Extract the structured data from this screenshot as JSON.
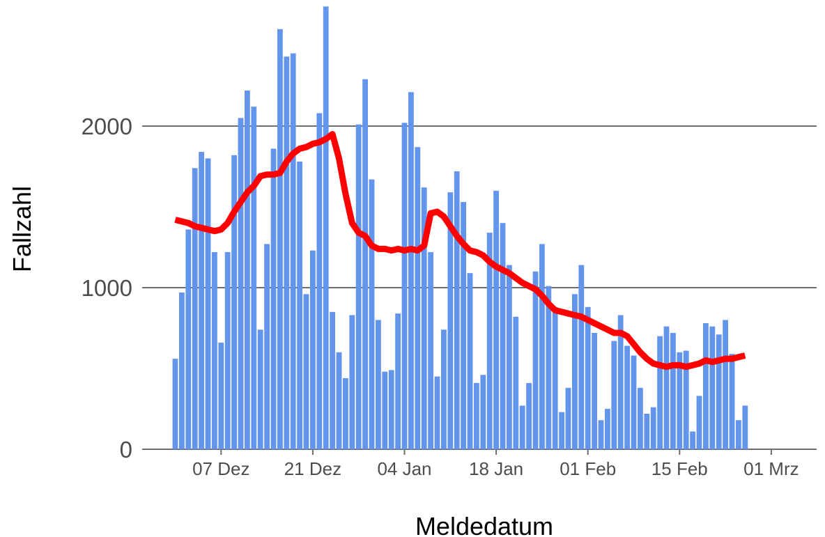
{
  "chart_data": {
    "type": "bar",
    "xlabel": "Meldedatum",
    "ylabel": "Fallzahl",
    "ylim": [
      0,
      2850
    ],
    "y_ticks": [
      0,
      1000,
      2000
    ],
    "x_start": "2020-11-30",
    "x_tick_labels": [
      "07 Dez",
      "21 Dez",
      "04 Jan",
      "18 Jan",
      "01 Feb",
      "15 Feb",
      "01 Mrz"
    ],
    "bar_color": "#6495ed",
    "line_color": "#ff0000",
    "grid": true,
    "series": [
      {
        "type": "bar",
        "values": [
          560,
          970,
          1360,
          1740,
          1840,
          1800,
          1220,
          660,
          1220,
          1820,
          2050,
          2220,
          2120,
          740,
          1270,
          1860,
          2600,
          2430,
          2450,
          1780,
          960,
          1230,
          2080,
          2740,
          850,
          600,
          440,
          830,
          2010,
          2290,
          1670,
          800,
          480,
          490,
          840,
          2020,
          2210,
          1870,
          1620,
          1220,
          450,
          740,
          1590,
          1720,
          1530,
          1090,
          410,
          460,
          1340,
          1600,
          1400,
          1140,
          820,
          270,
          410,
          1100,
          1270,
          1010,
          880,
          230,
          380,
          960,
          1140,
          880,
          720,
          180,
          250,
          670,
          830,
          640,
          580,
          380,
          220,
          260,
          700,
          760,
          720,
          600,
          610,
          110,
          330,
          780,
          760,
          710,
          800,
          590,
          180,
          270
        ]
      },
      {
        "type": "line",
        "values": [
          1420,
          1410,
          1400,
          1380,
          1370,
          1360,
          1350,
          1360,
          1400,
          1470,
          1530,
          1590,
          1630,
          1690,
          1700,
          1700,
          1710,
          1780,
          1830,
          1860,
          1870,
          1890,
          1900,
          1920,
          1950,
          1800,
          1580,
          1400,
          1340,
          1320,
          1260,
          1240,
          1240,
          1230,
          1240,
          1230,
          1240,
          1230,
          1260,
          1460,
          1470,
          1440,
          1380,
          1320,
          1270,
          1230,
          1220,
          1200,
          1160,
          1130,
          1110,
          1090,
          1060,
          1030,
          1010,
          990,
          950,
          900,
          860,
          850,
          840,
          830,
          820,
          800,
          780,
          760,
          740,
          720,
          720,
          700,
          650,
          600,
          560,
          530,
          520,
          510,
          520,
          520,
          510,
          520,
          530,
          550,
          540,
          550,
          560,
          560,
          570,
          580
        ]
      }
    ]
  }
}
